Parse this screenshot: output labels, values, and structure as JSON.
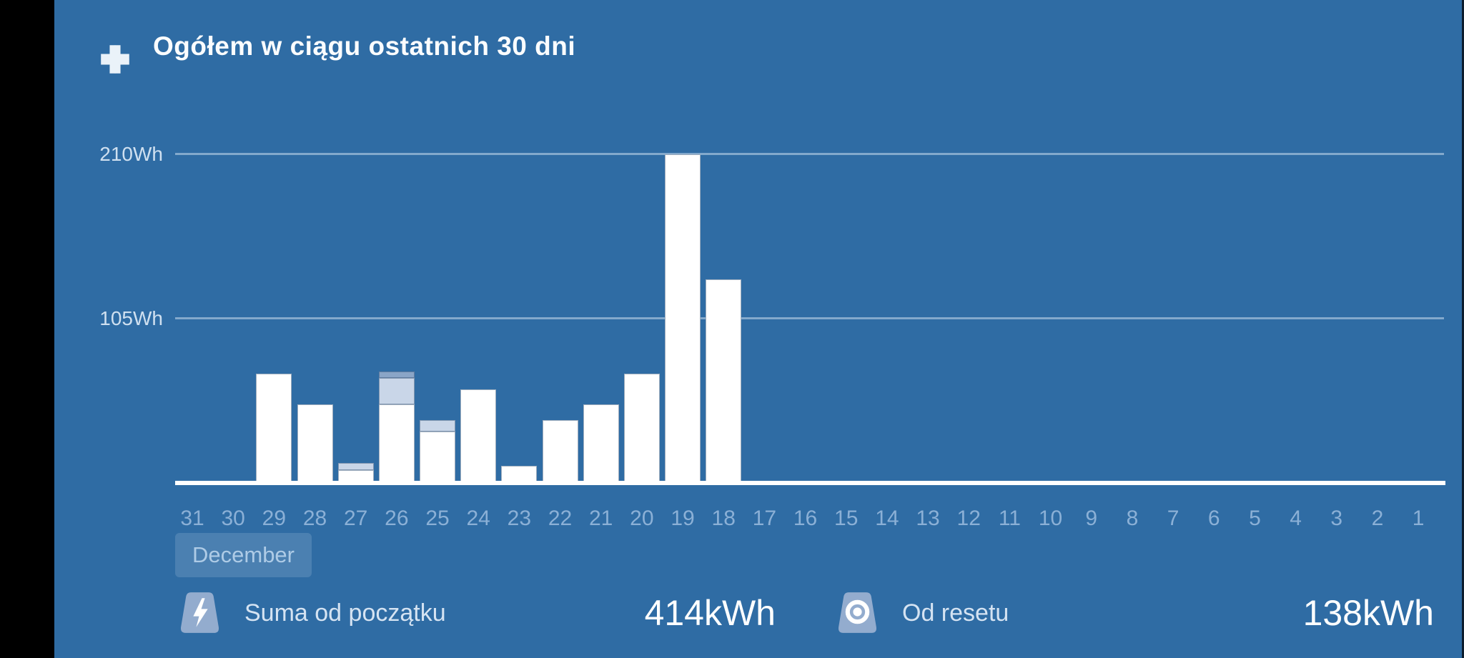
{
  "header": {
    "title": "Ogółem w ciągu ostatnich 30 dni",
    "collapse_icon": "collapse-icon"
  },
  "chart_data": {
    "type": "bar",
    "title": "Ogółem w ciągu ostatnich 30 dni",
    "unit": "Wh",
    "ylim": [
      0,
      230
    ],
    "grid": "on",
    "y_ticks": [
      {
        "label": "210Wh",
        "value": 210
      },
      {
        "label": "105Wh",
        "value": 105
      }
    ],
    "month_label": "December",
    "categories": [
      "31",
      "30",
      "29",
      "28",
      "27",
      "26",
      "25",
      "24",
      "23",
      "22",
      "21",
      "20",
      "19",
      "18",
      "17",
      "16",
      "15",
      "14",
      "13",
      "12",
      "11",
      "10",
      "9",
      "8",
      "7",
      "6",
      "5",
      "4",
      "3",
      "2",
      "1"
    ],
    "series": [
      {
        "name": "main",
        "color": "#FFFFFF",
        "values": [
          0,
          0,
          70,
          50,
          8,
          50,
          33,
          60,
          11,
          40,
          50,
          70,
          210,
          130,
          0,
          0,
          0,
          0,
          0,
          0,
          0,
          0,
          0,
          0,
          0,
          0,
          0,
          0,
          0,
          0,
          0
        ]
      },
      {
        "name": "secondary",
        "color": "#C9D6E8",
        "values": [
          0,
          0,
          0,
          0,
          5,
          17,
          7,
          0,
          0,
          0,
          0,
          0,
          0,
          0,
          0,
          0,
          0,
          0,
          0,
          0,
          0,
          0,
          0,
          0,
          0,
          0,
          0,
          0,
          0,
          0,
          0
        ]
      },
      {
        "name": "tertiary",
        "color": "#8AA5C7",
        "values": [
          0,
          0,
          0,
          0,
          0,
          4,
          0,
          0,
          0,
          0,
          0,
          0,
          0,
          0,
          0,
          0,
          0,
          0,
          0,
          0,
          0,
          0,
          0,
          0,
          0,
          0,
          0,
          0,
          0,
          0,
          0
        ]
      }
    ]
  },
  "footer": {
    "total_icon": "lightning-icon",
    "total_label": "Suma od początku",
    "total_value": "414kWh",
    "reset_icon": "bullseye-icon",
    "reset_label": "Od resetu",
    "reset_value": "138kWh"
  },
  "colors": {
    "background": "#2F6CA4",
    "side_bar": "#000000",
    "gridline": "#9DBBD8",
    "axis_label": "#8BB0D6",
    "bar_main": "#FFFFFF",
    "bar_secondary": "#C9D6E8",
    "bar_tertiary": "#8AA5C7",
    "badge": "#93ACCE"
  }
}
